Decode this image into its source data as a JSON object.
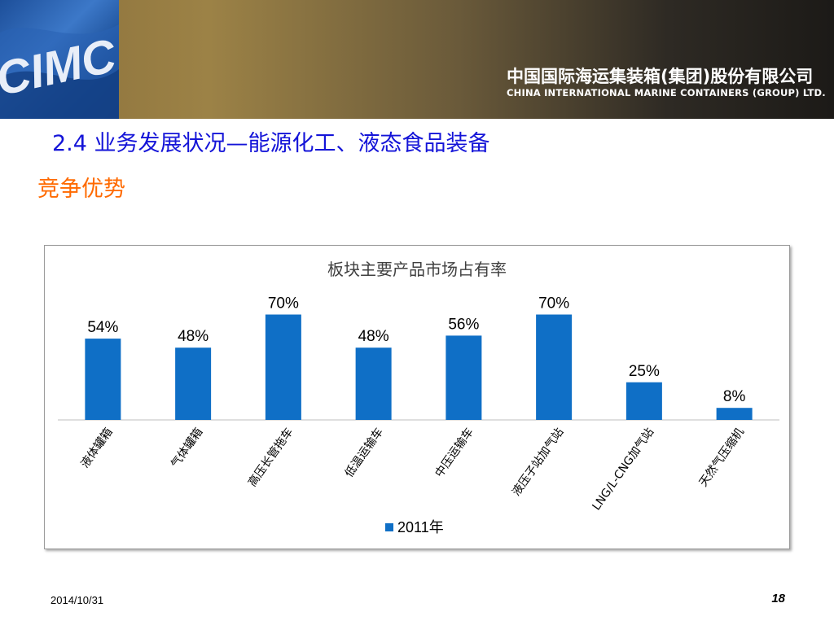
{
  "header": {
    "logo_text": "CIMC",
    "company_cn": "中国国际海运集装箱(集团)股份有限公司",
    "company_en": "CHINA INTERNATIONAL MARINE CONTAINERS (GROUP) LTD."
  },
  "slide": {
    "section_title": "2.4 业务发展状况—能源化工、液态食品装备",
    "subtitle": "竞争优势"
  },
  "colors": {
    "bar": "#0f6fc6",
    "title_blue": "#1414d8",
    "subtitle_orange": "#ff6a00"
  },
  "chart_data": {
    "type": "bar",
    "title": "板块主要产品市场占有率",
    "categories": [
      "液体罐箱",
      "气体罐箱",
      "高压长管拖车",
      "低温运输车",
      "中压运输车",
      "液压子站加气站",
      "LNG/L-CNG加气站",
      "天然气压缩机"
    ],
    "series": [
      {
        "name": "2011年",
        "values": [
          54,
          48,
          70,
          48,
          56,
          70,
          25,
          8
        ],
        "labels": [
          "54%",
          "48%",
          "70%",
          "48%",
          "56%",
          "70%",
          "25%",
          "8%"
        ]
      }
    ],
    "value_unit": "%",
    "ylim": [
      0,
      70
    ],
    "grid": false,
    "legend_position": "bottom"
  },
  "footer": {
    "date": "2014/10/31",
    "page": "18"
  }
}
